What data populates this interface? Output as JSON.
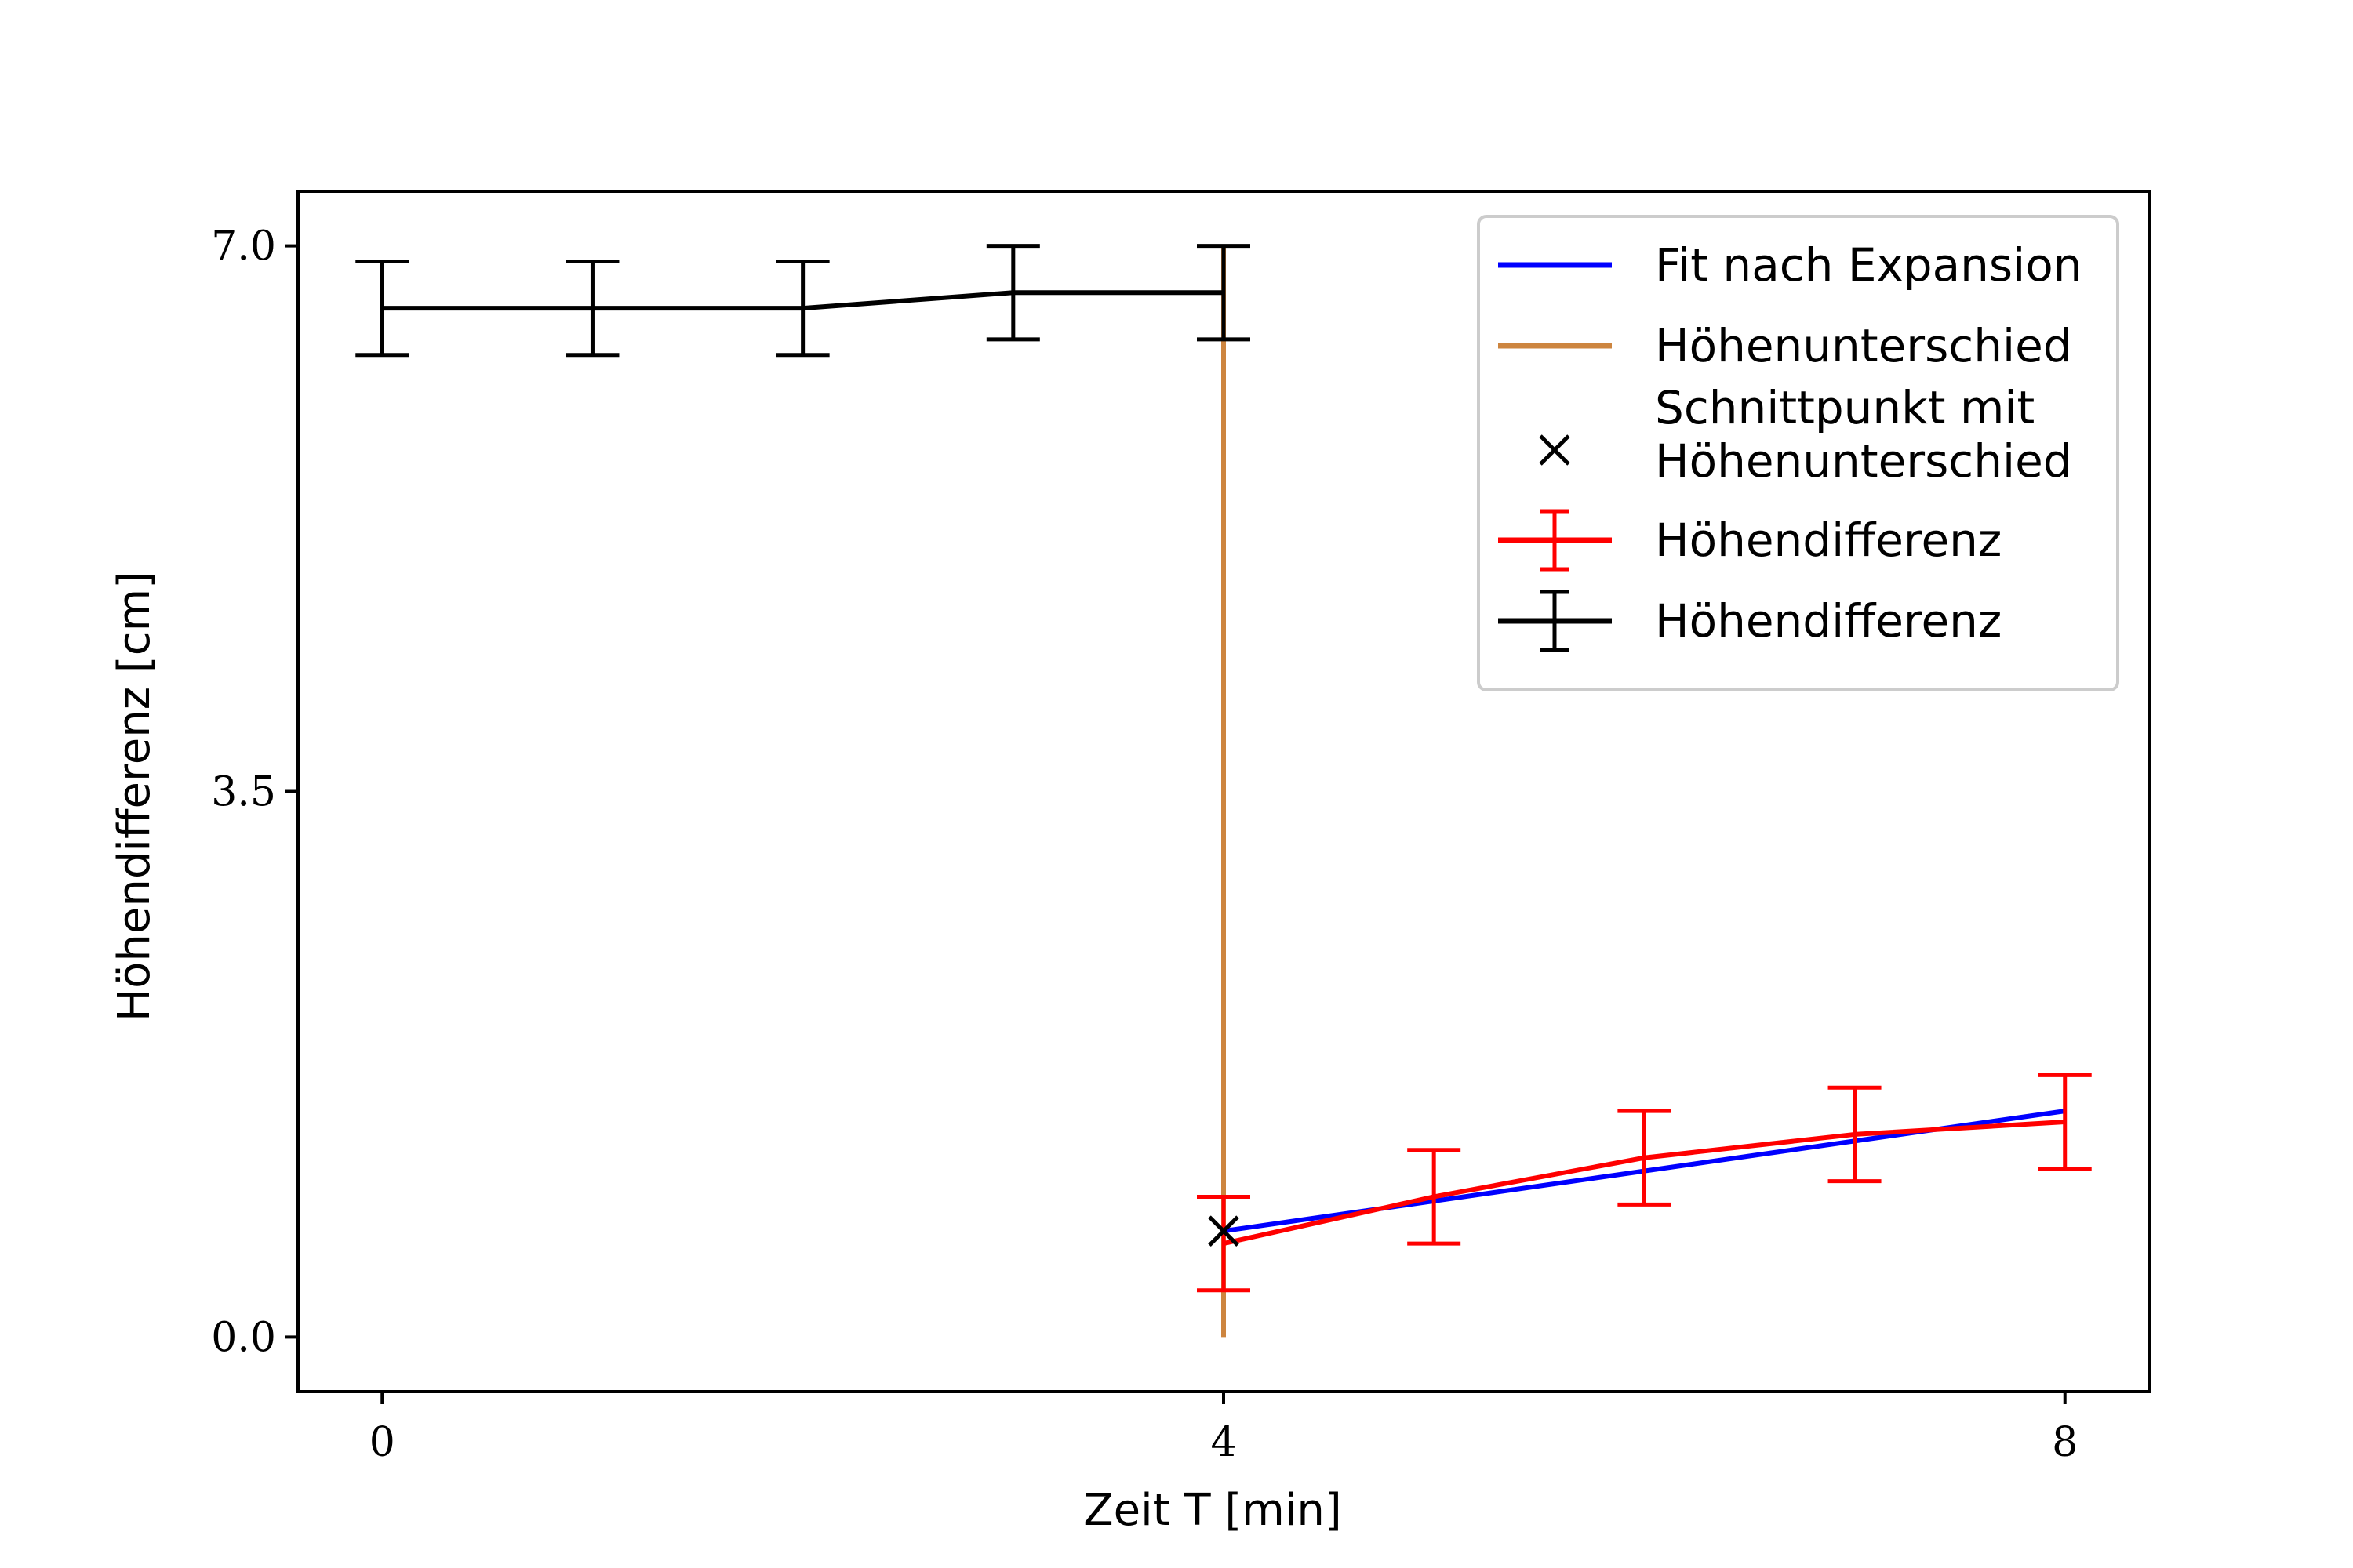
{
  "chart_data": {
    "type": "line",
    "title": "",
    "xlabel": "Zeit T [min]",
    "ylabel": "Höhendifferenz [cm]",
    "xlim": [
      -0.4,
      8.4
    ],
    "ylim": [
      -0.35,
      7.35
    ],
    "xticks": [
      0,
      4,
      8
    ],
    "xtick_labels": [
      "0",
      "4",
      "8"
    ],
    "yticks": [
      0.0,
      3.5,
      7.0
    ],
    "ytick_labels": [
      "0.0",
      "3.5",
      "7.0"
    ],
    "grid": false,
    "legend_position": "top-right",
    "series": [
      {
        "name": "Fit nach Expansion",
        "kind": "line",
        "color": "#0000ff",
        "x": [
          4,
          8
        ],
        "y": [
          0.68,
          1.45
        ]
      },
      {
        "name": "Höhenunterschied",
        "kind": "vertical-line",
        "color": "#cd853f",
        "x": [
          4,
          4
        ],
        "y": [
          0.0,
          7.0
        ]
      },
      {
        "name": "Schnittpunkt mit\nHöhenunterschied",
        "kind": "marker",
        "color": "#000000",
        "x": [
          4
        ],
        "y": [
          0.68
        ]
      },
      {
        "name": "Höhendifferenz",
        "kind": "errorbar",
        "color": "#ff0000",
        "x": [
          4,
          5,
          6,
          7,
          8
        ],
        "y": [
          0.6,
          0.9,
          1.15,
          1.3,
          1.38
        ],
        "yerr": [
          0.3,
          0.3,
          0.3,
          0.3,
          0.3
        ]
      },
      {
        "name": "Höhendifferenz",
        "kind": "errorbar",
        "color": "#000000",
        "x": [
          0,
          1,
          2,
          3,
          4
        ],
        "y": [
          6.6,
          6.6,
          6.6,
          6.7,
          6.7
        ],
        "yerr": [
          0.3,
          0.3,
          0.3,
          0.3,
          0.3
        ]
      }
    ]
  }
}
